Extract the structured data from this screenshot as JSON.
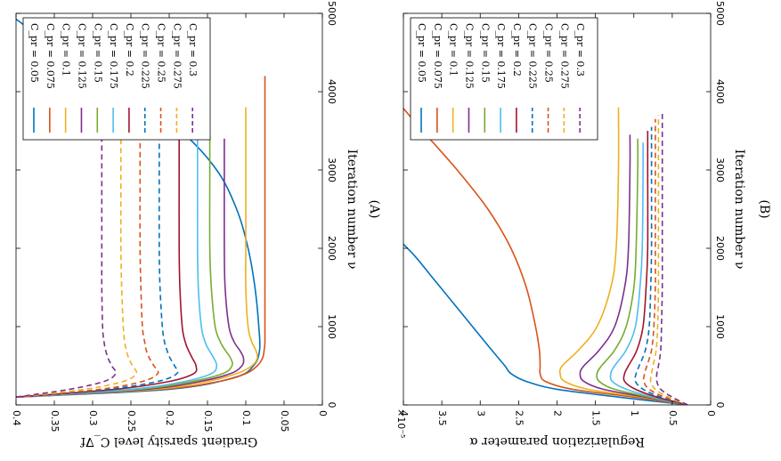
{
  "chart_data": [
    {
      "type": "line",
      "caption": "(A)",
      "xlabel": "Iteration number ν",
      "ylabel": "Gradient sparsity level C_∇f",
      "xlim": [
        0,
        5000
      ],
      "ylim": [
        0,
        0.4
      ],
      "xticks": [
        0,
        1000,
        2000,
        3000,
        4000,
        5000
      ],
      "yticks": [
        0,
        0.05,
        0.1,
        0.15,
        0.2,
        0.25,
        0.3,
        0.35,
        0.4
      ],
      "xtick_labels": [
        "0",
        "1000",
        "2000",
        "3000",
        "4000",
        "5000"
      ],
      "ytick_labels": [
        "0",
        "0.05",
        "0.1",
        "0.15",
        "0.2",
        "0.25",
        "0.3",
        "0.35",
        "0.4"
      ],
      "grid": false,
      "legend_position": "upper-left",
      "series": [
        {
          "name": "C_pr = 0.05",
          "color": "#0072BD",
          "dash": false,
          "x": [
            100,
            200,
            350,
            500,
            700,
            1000,
            1500,
            2000,
            2500,
            3000,
            3500,
            4000,
            4500,
            5000
          ],
          "y": [
            0.4,
            0.2,
            0.115,
            0.09,
            0.082,
            0.083,
            0.088,
            0.097,
            0.112,
            0.138,
            0.185,
            0.255,
            0.34,
            0.41
          ]
        },
        {
          "name": "C_pr = 0.075",
          "color": "#D95319",
          "dash": false,
          "x": [
            100,
            200,
            300,
            400,
            500,
            600,
            700,
            800,
            1000,
            1500,
            2000,
            3000,
            4000,
            4200
          ],
          "y": [
            0.4,
            0.21,
            0.135,
            0.1,
            0.085,
            0.078,
            0.076,
            0.075,
            0.075,
            0.075,
            0.075,
            0.075,
            0.075,
            0.075
          ]
        },
        {
          "name": "C_pr = 0.1",
          "color": "#EDB120",
          "dash": false,
          "x": [
            100,
            200,
            300,
            400,
            500,
            600,
            700,
            800,
            1000,
            1500,
            2000,
            3000,
            3800
          ],
          "y": [
            0.4,
            0.22,
            0.15,
            0.112,
            0.092,
            0.085,
            0.087,
            0.092,
            0.097,
            0.1,
            0.1,
            0.1,
            0.1
          ]
        },
        {
          "name": "C_pr = 0.125",
          "color": "#7E2F8E",
          "dash": false,
          "x": [
            100,
            200,
            300,
            400,
            500,
            600,
            700,
            800,
            1000,
            1500,
            2000,
            3000,
            3400
          ],
          "y": [
            0.4,
            0.23,
            0.16,
            0.12,
            0.105,
            0.103,
            0.108,
            0.115,
            0.122,
            0.127,
            0.128,
            0.128,
            0.128
          ]
        },
        {
          "name": "C_pr = 0.15",
          "color": "#77AC30",
          "dash": false,
          "x": [
            100,
            200,
            300,
            400,
            500,
            600,
            700,
            800,
            1000,
            1500,
            2000,
            3000,
            3450
          ],
          "y": [
            0.4,
            0.24,
            0.17,
            0.13,
            0.118,
            0.12,
            0.127,
            0.133,
            0.14,
            0.145,
            0.147,
            0.147,
            0.147
          ]
        },
        {
          "name": "C_pr = 0.175",
          "color": "#4DBEEE",
          "dash": false,
          "x": [
            100,
            200,
            300,
            400,
            500,
            600,
            700,
            800,
            1000,
            1500,
            2000,
            3000,
            3450
          ],
          "y": [
            0.4,
            0.25,
            0.18,
            0.145,
            0.138,
            0.142,
            0.148,
            0.153,
            0.158,
            0.162,
            0.163,
            0.163,
            0.163
          ]
        },
        {
          "name": "C_pr = 0.2",
          "color": "#A2142F",
          "dash": false,
          "x": [
            100,
            200,
            300,
            400,
            500,
            600,
            700,
            800,
            1000,
            1500,
            2000,
            3000,
            3450
          ],
          "y": [
            0.4,
            0.27,
            0.2,
            0.168,
            0.165,
            0.17,
            0.175,
            0.179,
            0.183,
            0.186,
            0.187,
            0.187,
            0.187
          ]
        },
        {
          "name": "C_pr = 0.225",
          "color": "#0072BD",
          "dash": true,
          "x": [
            100,
            200,
            300,
            400,
            500,
            600,
            700,
            800,
            1000,
            1500,
            2000,
            3000,
            3450
          ],
          "y": [
            0.4,
            0.28,
            0.215,
            0.19,
            0.193,
            0.199,
            0.203,
            0.206,
            0.209,
            0.212,
            0.213,
            0.213,
            0.213
          ]
        },
        {
          "name": "C_pr = 0.25",
          "color": "#D95319",
          "dash": true,
          "x": [
            100,
            200,
            300,
            400,
            500,
            600,
            700,
            800,
            1000,
            1500,
            2000,
            3000,
            3450
          ],
          "y": [
            0.4,
            0.29,
            0.235,
            0.215,
            0.22,
            0.226,
            0.23,
            0.232,
            0.235,
            0.237,
            0.238,
            0.238,
            0.238
          ]
        },
        {
          "name": "C_pr = 0.275",
          "color": "#EDB120",
          "dash": true,
          "x": [
            100,
            200,
            300,
            400,
            500,
            600,
            700,
            800,
            1000,
            1500,
            2000,
            3000,
            3450
          ],
          "y": [
            0.4,
            0.31,
            0.26,
            0.243,
            0.248,
            0.253,
            0.256,
            0.258,
            0.26,
            0.262,
            0.263,
            0.263,
            0.263
          ]
        },
        {
          "name": "C_pr = 0.3",
          "color": "#7E2F8E",
          "dash": true,
          "x": [
            100,
            200,
            300,
            400,
            500,
            600,
            700,
            800,
            1000,
            1500,
            2000,
            3000,
            3450
          ],
          "y": [
            0.4,
            0.33,
            0.285,
            0.27,
            0.275,
            0.28,
            0.283,
            0.285,
            0.287,
            0.288,
            0.288,
            0.288,
            0.288
          ]
        }
      ]
    },
    {
      "type": "line",
      "caption": "(B)",
      "xlabel": "Iteration number ν",
      "ylabel": "Regularization parameter α",
      "multiplier": "×10⁻⁵",
      "xlim": [
        0,
        5000
      ],
      "ylim": [
        0,
        4
      ],
      "xticks": [
        0,
        1000,
        2000,
        3000,
        4000,
        5000
      ],
      "yticks": [
        0,
        0.5,
        1,
        1.5,
        2,
        2.5,
        3,
        3.5,
        4
      ],
      "xtick_labels": [
        "0",
        "1000",
        "2000",
        "3000",
        "4000",
        "5000"
      ],
      "ytick_labels": [
        "0",
        "0.5",
        "1",
        "1.5",
        "2",
        "2.5",
        "3",
        "3.5",
        "4"
      ],
      "grid": false,
      "legend_position": "upper-left",
      "series": [
        {
          "name": "C_pr = 0.05",
          "color": "#0072BD",
          "dash": false,
          "x": [
            0,
            100,
            200,
            300,
            400,
            500,
            700,
            1000,
            1300,
            1600,
            1900,
            2100
          ],
          "y": [
            0.3,
            1.2,
            2.0,
            2.4,
            2.6,
            2.68,
            2.85,
            3.1,
            3.35,
            3.6,
            3.85,
            4.05
          ]
        },
        {
          "name": "C_pr = 0.075",
          "color": "#D95319",
          "dash": false,
          "x": [
            0,
            100,
            200,
            300,
            400,
            500,
            700,
            1000,
            1500,
            2000,
            2500,
            3000,
            3500,
            3900
          ],
          "y": [
            0.3,
            1.0,
            1.8,
            2.15,
            2.22,
            2.22,
            2.23,
            2.28,
            2.4,
            2.6,
            2.9,
            3.3,
            3.75,
            4.1
          ]
        },
        {
          "name": "C_pr = 0.1",
          "color": "#EDB120",
          "dash": false,
          "x": [
            0,
            100,
            200,
            300,
            400,
            500,
            700,
            1000,
            1500,
            2000,
            3000,
            3800
          ],
          "y": [
            0.3,
            0.9,
            1.6,
            1.9,
            1.96,
            1.93,
            1.72,
            1.48,
            1.3,
            1.23,
            1.2,
            1.2
          ]
        },
        {
          "name": "C_pr = 0.125",
          "color": "#7E2F8E",
          "dash": false,
          "x": [
            0,
            100,
            200,
            300,
            400,
            500,
            700,
            1000,
            1500,
            2000,
            3000,
            3450
          ],
          "y": [
            0.3,
            0.85,
            1.4,
            1.65,
            1.7,
            1.65,
            1.45,
            1.25,
            1.12,
            1.07,
            1.05,
            1.05
          ]
        },
        {
          "name": "C_pr = 0.15",
          "color": "#77AC30",
          "dash": false,
          "x": [
            0,
            100,
            200,
            300,
            400,
            500,
            700,
            1000,
            1500,
            2000,
            3000,
            3400
          ],
          "y": [
            0.3,
            0.8,
            1.25,
            1.45,
            1.48,
            1.42,
            1.25,
            1.1,
            1.0,
            0.97,
            0.95,
            0.95
          ]
        },
        {
          "name": "C_pr = 0.175",
          "color": "#4DBEEE",
          "dash": false,
          "x": [
            0,
            100,
            200,
            300,
            400,
            500,
            700,
            1000,
            1500,
            2000,
            3000,
            3350
          ],
          "y": [
            0.3,
            0.75,
            1.1,
            1.28,
            1.3,
            1.25,
            1.1,
            0.98,
            0.92,
            0.89,
            0.88,
            0.88
          ]
        },
        {
          "name": "C_pr = 0.2",
          "color": "#A2142F",
          "dash": false,
          "x": [
            0,
            100,
            200,
            300,
            400,
            500,
            700,
            1000,
            1500,
            2000,
            3000,
            3500
          ],
          "y": [
            0.3,
            0.7,
            0.98,
            1.12,
            1.12,
            1.07,
            0.96,
            0.88,
            0.84,
            0.82,
            0.82,
            0.82
          ]
        },
        {
          "name": "C_pr = 0.225",
          "color": "#0072BD",
          "dash": true,
          "x": [
            0,
            100,
            200,
            300,
            400,
            500,
            700,
            1000,
            1500,
            2000,
            3000,
            3550
          ],
          "y": [
            0.3,
            0.65,
            0.88,
            0.98,
            0.97,
            0.93,
            0.85,
            0.8,
            0.78,
            0.77,
            0.77,
            0.77
          ]
        },
        {
          "name": "C_pr = 0.25",
          "color": "#D95319",
          "dash": true,
          "x": [
            0,
            100,
            200,
            300,
            400,
            500,
            700,
            1000,
            1500,
            2000,
            3000,
            3650
          ],
          "y": [
            0.3,
            0.6,
            0.8,
            0.87,
            0.86,
            0.83,
            0.77,
            0.74,
            0.72,
            0.72,
            0.72,
            0.72
          ]
        },
        {
          "name": "C_pr = 0.275",
          "color": "#EDB120",
          "dash": true,
          "x": [
            0,
            100,
            200,
            300,
            400,
            500,
            700,
            1000,
            1500,
            2000,
            3000,
            3700
          ],
          "y": [
            0.3,
            0.55,
            0.72,
            0.78,
            0.77,
            0.75,
            0.71,
            0.69,
            0.68,
            0.68,
            0.68,
            0.68
          ]
        },
        {
          "name": "C_pr = 0.3",
          "color": "#7E2F8E",
          "dash": true,
          "x": [
            0,
            100,
            200,
            300,
            400,
            500,
            700,
            1000,
            1500,
            2000,
            3000,
            3750
          ],
          "y": [
            0.3,
            0.5,
            0.65,
            0.7,
            0.7,
            0.68,
            0.65,
            0.64,
            0.63,
            0.63,
            0.63,
            0.63
          ]
        }
      ]
    }
  ]
}
